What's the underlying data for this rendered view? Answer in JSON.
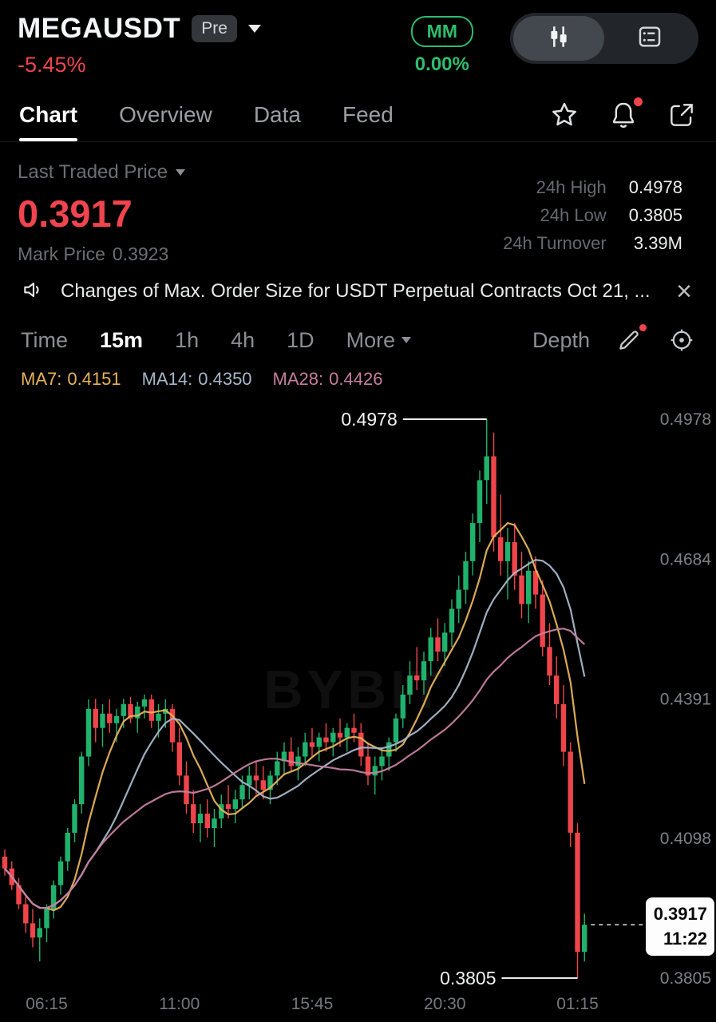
{
  "header": {
    "symbol": "MEGAUSDT",
    "pre_badge": "Pre",
    "change_24h": "-5.45%",
    "mm_badge": "MM",
    "mm_value": "0.00%"
  },
  "tabs": [
    {
      "label": "Chart"
    },
    {
      "label": "Overview"
    },
    {
      "label": "Data"
    },
    {
      "label": "Feed"
    }
  ],
  "price_panel": {
    "last_traded_label": "Last Traded Price",
    "last_price": "0.3917",
    "mark_price_label": "Mark Price",
    "mark_price": "0.3923",
    "stats": [
      {
        "label": "24h High",
        "value": "0.4978"
      },
      {
        "label": "24h Low",
        "value": "0.3805"
      },
      {
        "label": "24h Turnover",
        "value": "3.39M"
      }
    ]
  },
  "announcement": {
    "text": "Changes of Max. Order Size for USDT Perpetual Contracts Oct 21,  ..."
  },
  "toolbar": {
    "timeframes": [
      "Time",
      "15m",
      "1h",
      "4h",
      "1D"
    ],
    "active_timeframe": "15m",
    "more_label": "More",
    "depth_label": "Depth"
  },
  "indicators": [
    {
      "label": "MA7:",
      "value": "0.4151",
      "color": "#e6b35a"
    },
    {
      "label": "MA14:",
      "value": "0.4350",
      "color": "#a6b7c9"
    },
    {
      "label": "MA28:",
      "value": "0.4426",
      "color": "#c57e9f"
    }
  ],
  "chart_data": {
    "type": "candlestick",
    "interval": "15m",
    "price_max": 0.4978,
    "price_min": 0.3805,
    "y_axis_levels": [
      0.4978,
      0.4684,
      0.4391,
      0.4098,
      0.3805
    ],
    "y_axis_labels": [
      "0.4978",
      "0.4684",
      "0.4391",
      "0.4098",
      "0.3805"
    ],
    "x_axis_labels": [
      "06:15",
      "11:00",
      "15:45",
      "20:30",
      "01:15"
    ],
    "x_label_indices": [
      6,
      25,
      44,
      63,
      82
    ],
    "up_color": "#20b26c",
    "down_color": "#ef454a",
    "ma_colors": {
      "ma7": "#e6b35a",
      "ma14": "#a6b7c9",
      "ma28": "#c57e9f"
    },
    "ma_periods": {
      "ma7": 7,
      "ma14": 14,
      "ma28": 28
    },
    "watermark": "BYBIT",
    "high_annotation": {
      "label": "0.4978",
      "price": 0.4978,
      "candle_index": 69
    },
    "low_annotation": {
      "label": "0.3805",
      "price": 0.3805,
      "candle_index": 82
    },
    "last_price": {
      "label": "0.3917",
      "value": 0.3917,
      "countdown": "11:22"
    },
    "candles": [
      [
        0.406,
        0.4075,
        0.402,
        0.4035
      ],
      [
        0.4035,
        0.405,
        0.399,
        0.4
      ],
      [
        0.4,
        0.4015,
        0.395,
        0.396
      ],
      [
        0.396,
        0.398,
        0.39,
        0.392
      ],
      [
        0.392,
        0.395,
        0.387,
        0.389
      ],
      [
        0.389,
        0.393,
        0.384,
        0.391
      ],
      [
        0.391,
        0.396,
        0.388,
        0.395
      ],
      [
        0.395,
        0.401,
        0.393,
        0.4
      ],
      [
        0.4,
        0.406,
        0.398,
        0.405
      ],
      [
        0.405,
        0.412,
        0.403,
        0.411
      ],
      [
        0.411,
        0.418,
        0.409,
        0.417
      ],
      [
        0.417,
        0.428,
        0.415,
        0.427
      ],
      [
        0.427,
        0.439,
        0.425,
        0.437
      ],
      [
        0.437,
        0.4391,
        0.43,
        0.433
      ],
      [
        0.433,
        0.438,
        0.429,
        0.436
      ],
      [
        0.436,
        0.439,
        0.432,
        0.434
      ],
      [
        0.434,
        0.437,
        0.43,
        0.4355
      ],
      [
        0.4355,
        0.4391,
        0.433,
        0.438
      ],
      [
        0.438,
        0.4395,
        0.434,
        0.435
      ],
      [
        0.435,
        0.4385,
        0.432,
        0.4375
      ],
      [
        0.4375,
        0.44,
        0.435,
        0.439
      ],
      [
        0.439,
        0.44,
        0.433,
        0.4345
      ],
      [
        0.4345,
        0.438,
        0.431,
        0.436
      ],
      [
        0.436,
        0.439,
        0.433,
        0.437
      ],
      [
        0.437,
        0.438,
        0.428,
        0.43
      ],
      [
        0.43,
        0.433,
        0.421,
        0.423
      ],
      [
        0.423,
        0.426,
        0.415,
        0.417
      ],
      [
        0.417,
        0.42,
        0.411,
        0.413
      ],
      [
        0.413,
        0.417,
        0.409,
        0.415
      ],
      [
        0.415,
        0.418,
        0.41,
        0.412
      ],
      [
        0.412,
        0.416,
        0.408,
        0.414
      ],
      [
        0.414,
        0.419,
        0.412,
        0.417
      ],
      [
        0.417,
        0.421,
        0.414,
        0.416
      ],
      [
        0.416,
        0.42,
        0.413,
        0.418
      ],
      [
        0.418,
        0.423,
        0.416,
        0.421
      ],
      [
        0.421,
        0.425,
        0.418,
        0.423
      ],
      [
        0.423,
        0.426,
        0.419,
        0.422
      ],
      [
        0.422,
        0.425,
        0.418,
        0.42
      ],
      [
        0.42,
        0.424,
        0.417,
        0.423
      ],
      [
        0.423,
        0.428,
        0.421,
        0.426
      ],
      [
        0.426,
        0.43,
        0.423,
        0.428
      ],
      [
        0.428,
        0.431,
        0.424,
        0.425
      ],
      [
        0.425,
        0.429,
        0.422,
        0.427
      ],
      [
        0.427,
        0.432,
        0.425,
        0.43
      ],
      [
        0.43,
        0.433,
        0.427,
        0.429
      ],
      [
        0.429,
        0.432,
        0.426,
        0.431
      ],
      [
        0.431,
        0.434,
        0.428,
        0.43
      ],
      [
        0.43,
        0.433,
        0.427,
        0.432
      ],
      [
        0.432,
        0.435,
        0.429,
        0.431
      ],
      [
        0.431,
        0.434,
        0.428,
        0.433
      ],
      [
        0.433,
        0.436,
        0.43,
        0.432
      ],
      [
        0.432,
        0.434,
        0.425,
        0.427
      ],
      [
        0.427,
        0.43,
        0.421,
        0.423
      ],
      [
        0.423,
        0.427,
        0.419,
        0.425
      ],
      [
        0.425,
        0.429,
        0.422,
        0.427
      ],
      [
        0.427,
        0.431,
        0.424,
        0.43
      ],
      [
        0.43,
        0.436,
        0.428,
        0.435
      ],
      [
        0.435,
        0.442,
        0.433,
        0.44
      ],
      [
        0.44,
        0.447,
        0.438,
        0.444
      ],
      [
        0.444,
        0.45,
        0.441,
        0.443
      ],
      [
        0.443,
        0.449,
        0.44,
        0.447
      ],
      [
        0.447,
        0.454,
        0.444,
        0.452
      ],
      [
        0.452,
        0.456,
        0.447,
        0.449
      ],
      [
        0.449,
        0.455,
        0.446,
        0.453
      ],
      [
        0.453,
        0.46,
        0.45,
        0.458
      ],
      [
        0.458,
        0.465,
        0.455,
        0.462
      ],
      [
        0.462,
        0.47,
        0.459,
        0.468
      ],
      [
        0.468,
        0.478,
        0.465,
        0.476
      ],
      [
        0.476,
        0.487,
        0.472,
        0.485
      ],
      [
        0.485,
        0.4978,
        0.48,
        0.49
      ],
      [
        0.49,
        0.495,
        0.47,
        0.473
      ],
      [
        0.473,
        0.482,
        0.465,
        0.468
      ],
      [
        0.468,
        0.475,
        0.46,
        0.472
      ],
      [
        0.472,
        0.476,
        0.462,
        0.465
      ],
      [
        0.465,
        0.47,
        0.456,
        0.459
      ],
      [
        0.459,
        0.468,
        0.455,
        0.466
      ],
      [
        0.466,
        0.469,
        0.458,
        0.461
      ],
      [
        0.461,
        0.464,
        0.448,
        0.45
      ],
      [
        0.45,
        0.455,
        0.442,
        0.444
      ],
      [
        0.444,
        0.448,
        0.435,
        0.438
      ],
      [
        0.438,
        0.442,
        0.425,
        0.428
      ],
      [
        0.428,
        0.43,
        0.408,
        0.411
      ],
      [
        0.411,
        0.413,
        0.3805,
        0.386
      ],
      [
        0.386,
        0.394,
        0.384,
        0.3917
      ]
    ]
  }
}
